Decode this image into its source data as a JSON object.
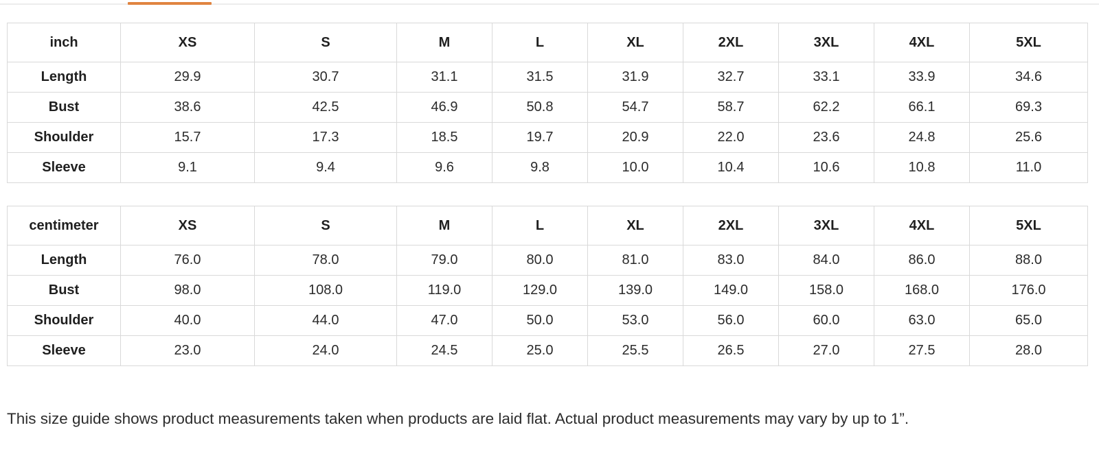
{
  "accent_color": "#e08440",
  "tables": [
    {
      "unit": "inch",
      "sizes": [
        "XS",
        "S",
        "M",
        "L",
        "XL",
        "2XL",
        "3XL",
        "4XL",
        "5XL"
      ],
      "rows": [
        {
          "label": "Length",
          "values": [
            "29.9",
            "30.7",
            "31.1",
            "31.5",
            "31.9",
            "32.7",
            "33.1",
            "33.9",
            "34.6"
          ]
        },
        {
          "label": "Bust",
          "values": [
            "38.6",
            "42.5",
            "46.9",
            "50.8",
            "54.7",
            "58.7",
            "62.2",
            "66.1",
            "69.3"
          ]
        },
        {
          "label": "Shoulder",
          "values": [
            "15.7",
            "17.3",
            "18.5",
            "19.7",
            "20.9",
            "22.0",
            "23.6",
            "24.8",
            "25.6"
          ]
        },
        {
          "label": "Sleeve",
          "values": [
            "9.1",
            "9.4",
            "9.6",
            "9.8",
            "10.0",
            "10.4",
            "10.6",
            "10.8",
            "11.0"
          ]
        }
      ]
    },
    {
      "unit": "centimeter",
      "sizes": [
        "XS",
        "S",
        "M",
        "L",
        "XL",
        "2XL",
        "3XL",
        "4XL",
        "5XL"
      ],
      "rows": [
        {
          "label": "Length",
          "values": [
            "76.0",
            "78.0",
            "79.0",
            "80.0",
            "81.0",
            "83.0",
            "84.0",
            "86.0",
            "88.0"
          ]
        },
        {
          "label": "Bust",
          "values": [
            "98.0",
            "108.0",
            "119.0",
            "129.0",
            "139.0",
            "149.0",
            "158.0",
            "168.0",
            "176.0"
          ]
        },
        {
          "label": "Shoulder",
          "values": [
            "40.0",
            "44.0",
            "47.0",
            "50.0",
            "53.0",
            "56.0",
            "60.0",
            "63.0",
            "65.0"
          ]
        },
        {
          "label": "Sleeve",
          "values": [
            "23.0",
            "24.0",
            "24.5",
            "25.0",
            "25.5",
            "26.5",
            "27.0",
            "27.5",
            "28.0"
          ]
        }
      ]
    }
  ],
  "note": "This size guide shows product measurements taken when products are laid flat. Actual product measurements may vary by up to 1”."
}
